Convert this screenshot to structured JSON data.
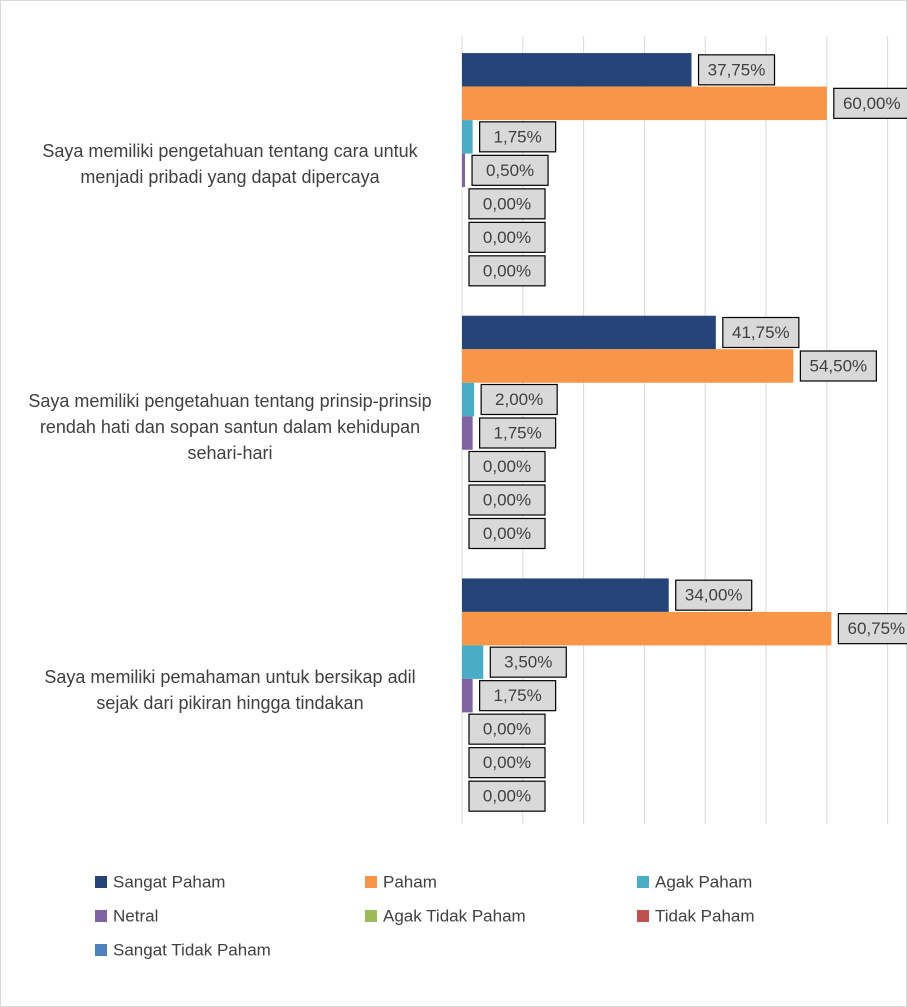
{
  "chart_data": {
    "type": "bar",
    "orientation": "horizontal",
    "categories": [
      "Saya memiliki pengetahuan tentang cara untuk menjadi pribadi yang dapat dipercaya",
      "Saya memiliki pengetahuan tentang prinsip-prinsip rendah hati dan sopan santun dalam kehidupan sehari-hari",
      "Saya memiliki pemahaman untuk bersikap adil sejak dari pikiran hingga tindakan"
    ],
    "series": [
      {
        "name": "Sangat Paham",
        "color": "#264478",
        "values": [
          37.75,
          41.75,
          34.0
        ],
        "value_labels": [
          "37,75%",
          "41,75%",
          "34,00%"
        ]
      },
      {
        "name": "Paham",
        "color": "#f79646",
        "values": [
          60.0,
          54.5,
          60.75
        ],
        "value_labels": [
          "60,00%",
          "54,50%",
          "60,75%"
        ]
      },
      {
        "name": "Agak Paham",
        "color": "#4bacc6",
        "values": [
          1.75,
          2.0,
          3.5
        ],
        "value_labels": [
          "1,75%",
          "2,00%",
          "3,50%"
        ]
      },
      {
        "name": "Netral",
        "color": "#8064a2",
        "values": [
          0.5,
          1.75,
          1.75
        ],
        "value_labels": [
          "0,50%",
          "1,75%",
          "1,75%"
        ]
      },
      {
        "name": "Agak Tidak Paham",
        "color": "#9bbb59",
        "values": [
          0,
          0,
          0
        ],
        "value_labels": [
          "0,00%",
          "0,00%",
          "0,00%"
        ]
      },
      {
        "name": "Tidak Paham",
        "color": "#c0504d",
        "values": [
          0,
          0,
          0
        ],
        "value_labels": [
          "0,00%",
          "0,00%",
          "0,00%"
        ]
      },
      {
        "name": "Sangat Tidak Paham",
        "color": "#4f81bd",
        "values": [
          0,
          0,
          0
        ],
        "value_labels": [
          "0,00%",
          "0,00%",
          "0,00%"
        ]
      }
    ],
    "xlim": [
      0,
      70
    ],
    "xticks": [
      0,
      10,
      20,
      30,
      40,
      50,
      60,
      70
    ],
    "grid": true,
    "legend": "bottom"
  }
}
